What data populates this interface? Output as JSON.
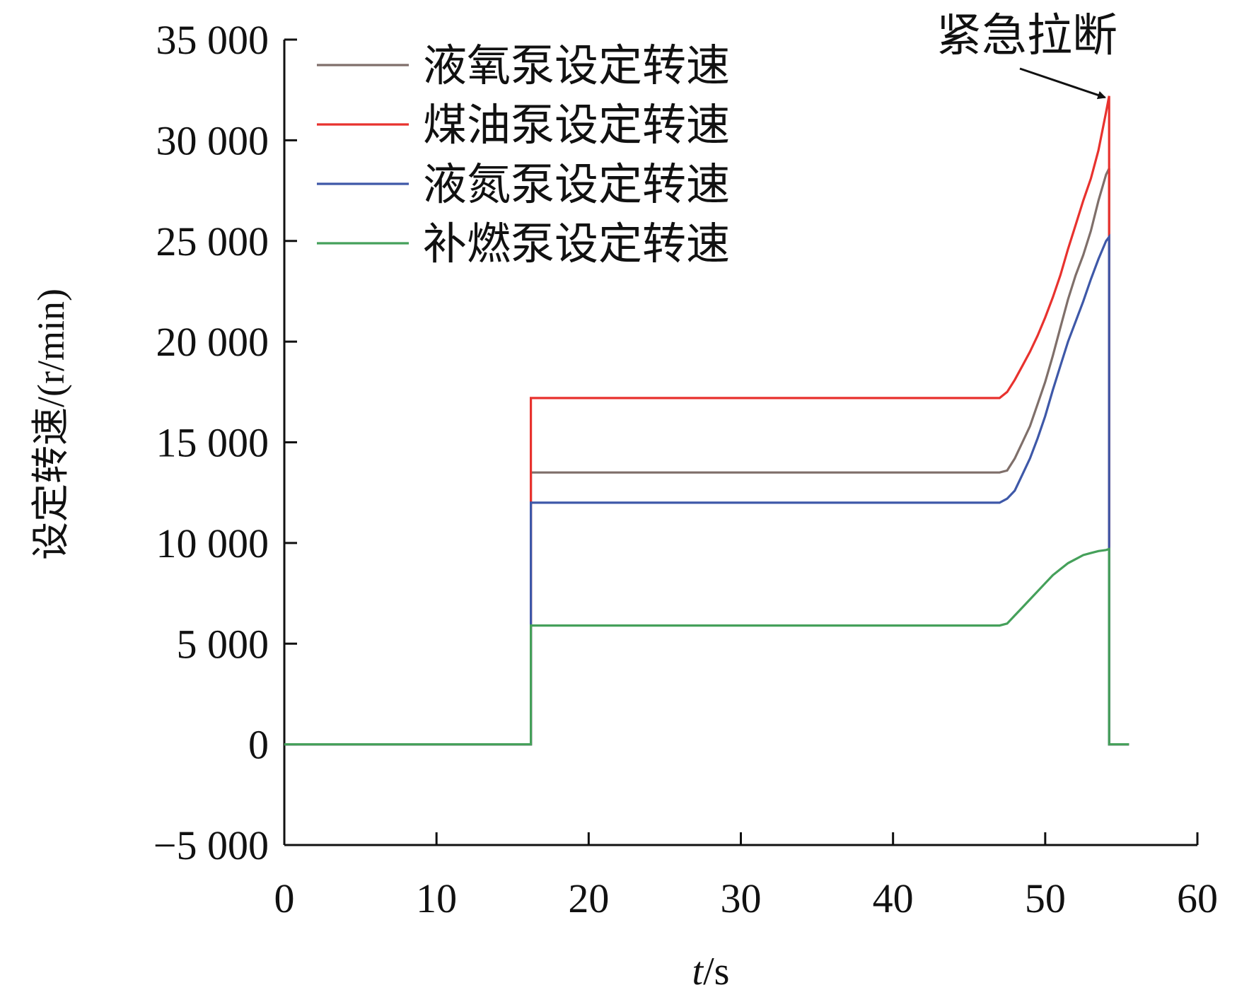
{
  "chart_data": {
    "type": "line",
    "xlabel": "t/s",
    "xlabel_italic": "t",
    "xlabel_rest": "/s",
    "ylabel": "设定转速/(r/min)",
    "xlim": [
      0,
      60
    ],
    "ylim": [
      -5000,
      35000
    ],
    "xticks": [
      0,
      10,
      20,
      30,
      40,
      50,
      60
    ],
    "xtick_labels": [
      "0",
      "10",
      "20",
      "30",
      "40",
      "50",
      "60"
    ],
    "yticks": [
      -5000,
      0,
      5000,
      10000,
      15000,
      20000,
      25000,
      30000,
      35000
    ],
    "ytick_labels": [
      "−5 000",
      "0",
      "5 000",
      "10 000",
      "15 000",
      "20 000",
      "25 000",
      "30 000",
      "35 000"
    ],
    "grid": false,
    "legend_position": "top-left",
    "annotation": {
      "text": "紧急拉断",
      "x": 54.2,
      "y": 32200
    },
    "series": [
      {
        "name": "液氧泵设定转速",
        "color": "#7f6f6a",
        "points": [
          [
            0,
            0
          ],
          [
            16.2,
            0
          ],
          [
            16.2,
            13500
          ],
          [
            47,
            13500
          ],
          [
            47.5,
            13600
          ],
          [
            48,
            14200
          ],
          [
            48.5,
            15000
          ],
          [
            49,
            15800
          ],
          [
            49.5,
            16900
          ],
          [
            50,
            18000
          ],
          [
            50.5,
            19300
          ],
          [
            51,
            20700
          ],
          [
            51.5,
            22100
          ],
          [
            52,
            23300
          ],
          [
            52.5,
            24300
          ],
          [
            53,
            25500
          ],
          [
            53.5,
            27000
          ],
          [
            54,
            28300
          ],
          [
            54.2,
            28600
          ],
          [
            54.2,
            0
          ],
          [
            55.5,
            0
          ]
        ]
      },
      {
        "name": "煤油泵设定转速",
        "color": "#e8322e",
        "points": [
          [
            0,
            0
          ],
          [
            16.2,
            0
          ],
          [
            16.2,
            17200
          ],
          [
            47,
            17200
          ],
          [
            47.5,
            17500
          ],
          [
            48,
            18100
          ],
          [
            48.5,
            18800
          ],
          [
            49,
            19500
          ],
          [
            49.5,
            20300
          ],
          [
            50,
            21200
          ],
          [
            50.5,
            22200
          ],
          [
            51,
            23300
          ],
          [
            51.5,
            24600
          ],
          [
            52,
            25800
          ],
          [
            52.5,
            27000
          ],
          [
            53,
            28100
          ],
          [
            53.5,
            29500
          ],
          [
            54,
            31400
          ],
          [
            54.2,
            32200
          ],
          [
            54.2,
            0
          ],
          [
            55.5,
            0
          ]
        ]
      },
      {
        "name": "液氮泵设定转速",
        "color": "#3e58a8",
        "points": [
          [
            0,
            0
          ],
          [
            16.2,
            0
          ],
          [
            16.2,
            12000
          ],
          [
            47,
            12000
          ],
          [
            47.5,
            12200
          ],
          [
            48,
            12600
          ],
          [
            48.5,
            13400
          ],
          [
            49,
            14200
          ],
          [
            49.5,
            15200
          ],
          [
            50,
            16300
          ],
          [
            50.5,
            17600
          ],
          [
            51,
            18800
          ],
          [
            51.5,
            20000
          ],
          [
            52,
            21000
          ],
          [
            52.5,
            22000
          ],
          [
            53,
            23100
          ],
          [
            53.5,
            24100
          ],
          [
            54,
            25000
          ],
          [
            54.2,
            25200
          ],
          [
            54.2,
            0
          ],
          [
            55.5,
            0
          ]
        ]
      },
      {
        "name": "补燃泵设定转速",
        "color": "#45a05a",
        "points": [
          [
            0,
            0
          ],
          [
            16.2,
            0
          ],
          [
            16.2,
            5900
          ],
          [
            47,
            5900
          ],
          [
            47.5,
            6000
          ],
          [
            48,
            6400
          ],
          [
            48.5,
            6800
          ],
          [
            49,
            7200
          ],
          [
            49.5,
            7600
          ],
          [
            50,
            8000
          ],
          [
            50.5,
            8400
          ],
          [
            51,
            8700
          ],
          [
            51.5,
            9000
          ],
          [
            52,
            9200
          ],
          [
            52.5,
            9400
          ],
          [
            53,
            9500
          ],
          [
            53.5,
            9600
          ],
          [
            54,
            9650
          ],
          [
            54.2,
            9700
          ],
          [
            54.2,
            0
          ],
          [
            55.5,
            0
          ]
        ]
      }
    ]
  }
}
